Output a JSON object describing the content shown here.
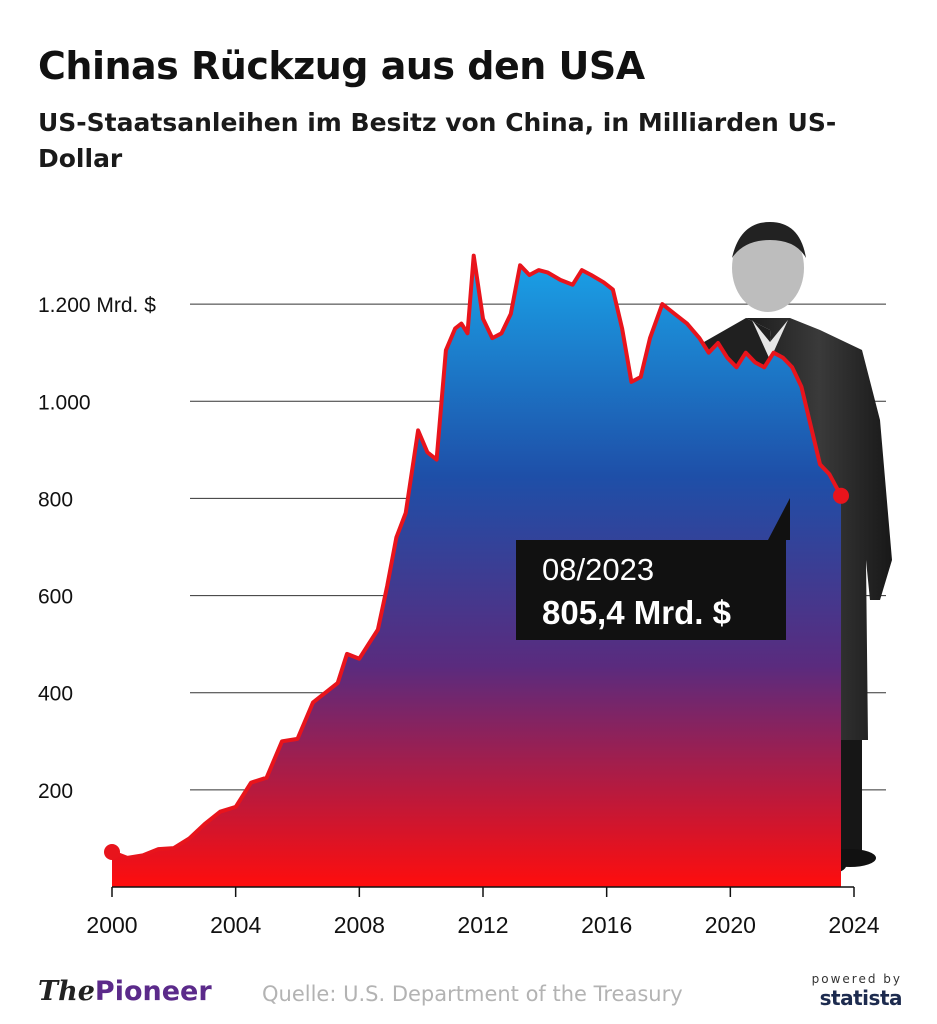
{
  "header": {
    "title": "Chinas Rückzug aus den USA",
    "subtitle": "US-Staatsanleihen im Besitz von China, in Milliarden US-Dollar"
  },
  "footer": {
    "logo_the": "The",
    "logo_pioneer": "Pioneer",
    "source": "Quelle: U.S. Department of the Treasury",
    "powered_by": "powered by",
    "statista": "statista"
  },
  "chart_data": {
    "type": "area",
    "title": "Chinas Rückzug aus den USA",
    "subtitle": "US-Staatsanleihen im Besitz von China, in Milliarden US-Dollar",
    "xlabel": "",
    "ylabel": "",
    "xlim": [
      2000,
      2024
    ],
    "ylim": [
      0,
      1400
    ],
    "x_ticks": [
      "2000",
      "2004",
      "2008",
      "2012",
      "2016",
      "2020",
      "2024"
    ],
    "y_ticks": [
      {
        "value": 200,
        "label": "200"
      },
      {
        "value": 400,
        "label": "400"
      },
      {
        "value": 600,
        "label": "600"
      },
      {
        "value": 800,
        "label": "800"
      },
      {
        "value": 1000,
        "label": "1.000"
      },
      {
        "value": 1200,
        "label": "1.200 Mrd. $"
      }
    ],
    "grid": true,
    "line_color": "#e8141c",
    "fill_gradient": [
      "#1aa3e8",
      "#1e4fa8",
      "#5a2b7e",
      "#ff0d0d"
    ],
    "series": [
      {
        "x": [
          2000.0,
          2000.5,
          2001.0,
          2001.5,
          2002.0,
          2002.5,
          2003.0,
          2003.5,
          2004.0,
          2004.5,
          2005.0,
          2005.5,
          2006.0,
          2006.5,
          2007.0,
          2007.3,
          2007.6,
          2008.0,
          2008.3,
          2008.6,
          2008.9,
          2009.2,
          2009.5,
          2009.9,
          2010.2,
          2010.5,
          2010.8,
          2011.1,
          2011.3,
          2011.5,
          2011.7,
          2012.0,
          2012.3,
          2012.6,
          2012.9,
          2013.2,
          2013.5,
          2013.8,
          2014.1,
          2014.5,
          2014.9,
          2015.2,
          2015.5,
          2015.9,
          2016.2,
          2016.5,
          2016.8,
          2017.1,
          2017.4,
          2017.8,
          2018.2,
          2018.6,
          2019.0,
          2019.3,
          2019.6,
          2019.9,
          2020.2,
          2020.5,
          2020.8,
          2021.1,
          2021.4,
          2021.7,
          2022.0,
          2022.3,
          2022.6,
          2022.9,
          2023.2,
          2023.58
        ],
        "values": [
          72,
          60,
          65,
          78,
          80,
          100,
          130,
          155,
          165,
          215,
          225,
          300,
          305,
          380,
          405,
          420,
          480,
          470,
          500,
          530,
          620,
          720,
          770,
          940,
          895,
          880,
          1105,
          1150,
          1160,
          1140,
          1300,
          1170,
          1130,
          1140,
          1180,
          1280,
          1260,
          1270,
          1265,
          1250,
          1240,
          1270,
          1260,
          1245,
          1230,
          1150,
          1040,
          1050,
          1130,
          1200,
          1180,
          1160,
          1130,
          1100,
          1120,
          1090,
          1070,
          1100,
          1080,
          1070,
          1100,
          1090,
          1070,
          1030,
          950,
          870,
          850,
          805.4
        ]
      }
    ],
    "annotation": {
      "date": "08/2023",
      "value": 805.4,
      "value_label": "805,4 Mrd. $"
    }
  }
}
